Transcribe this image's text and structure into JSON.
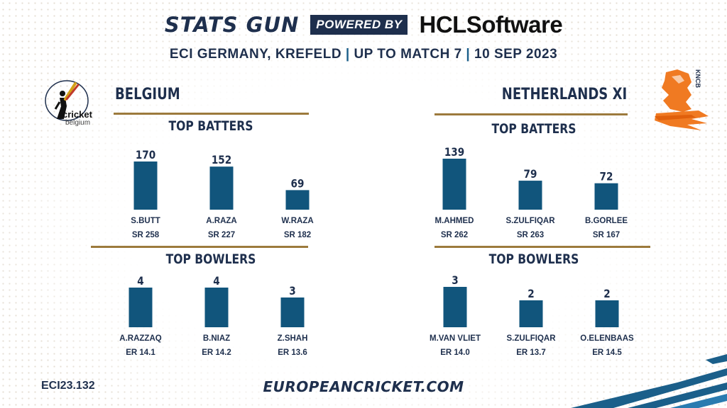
{
  "header": {
    "brand": "STATS GUN",
    "powered": "POWERED BY",
    "sponsor": "HCLSoftware",
    "subtitle_parts": [
      "ECI GERMANY, KREFELD",
      "UP TO MATCH 7",
      "10 SEP 2023"
    ],
    "separator": "|"
  },
  "colors": {
    "bar": "#11557c",
    "navy": "#1e2f4d",
    "gold": "#9c7a3c",
    "orange": "#f07a22"
  },
  "teams": {
    "left": {
      "name": "BELGIUM",
      "logo_text": [
        "cricket",
        "belgium"
      ],
      "logo_icon": "batsman-icon"
    },
    "right": {
      "name": "NETHERLANDS XI",
      "logo_text": "KNCB",
      "logo_icon": "lion-icon"
    }
  },
  "chart_data": [
    {
      "type": "bar",
      "title": "TOP BATTERS",
      "team": "BELGIUM",
      "categories": [
        "S.BUTT",
        "A.RAZA",
        "W.RAZA"
      ],
      "values": [
        170,
        152,
        69
      ],
      "sublabels": [
        "SR 258",
        "SR 227",
        "SR 182"
      ]
    },
    {
      "type": "bar",
      "title": "TOP BATTERS",
      "team": "NETHERLANDS XI",
      "categories": [
        "M.AHMED",
        "S.ZULFIQAR",
        "B.GORLEE"
      ],
      "values": [
        139,
        79,
        72
      ],
      "sublabels": [
        "SR 262",
        "SR 263",
        "SR 167"
      ]
    },
    {
      "type": "bar",
      "title": "TOP BOWLERS",
      "team": "BELGIUM",
      "categories": [
        "A.RAZZAQ",
        "B.NIAZ",
        "Z.SHAH"
      ],
      "values": [
        4,
        4,
        3
      ],
      "sublabels": [
        "ER 14.1",
        "ER 14.2",
        "ER 13.6"
      ]
    },
    {
      "type": "bar",
      "title": "TOP BOWLERS",
      "team": "NETHERLANDS XI",
      "categories": [
        "M.VAN VLIET",
        "S.ZULFIQAR",
        "O.ELENBAAS"
      ],
      "values": [
        3,
        2,
        2
      ],
      "sublabels": [
        "ER 14.0",
        "ER 13.7",
        "ER 14.5"
      ]
    }
  ],
  "footer": {
    "code": "ECI23.132",
    "url": "EUROPEANCRICKET.COM"
  }
}
